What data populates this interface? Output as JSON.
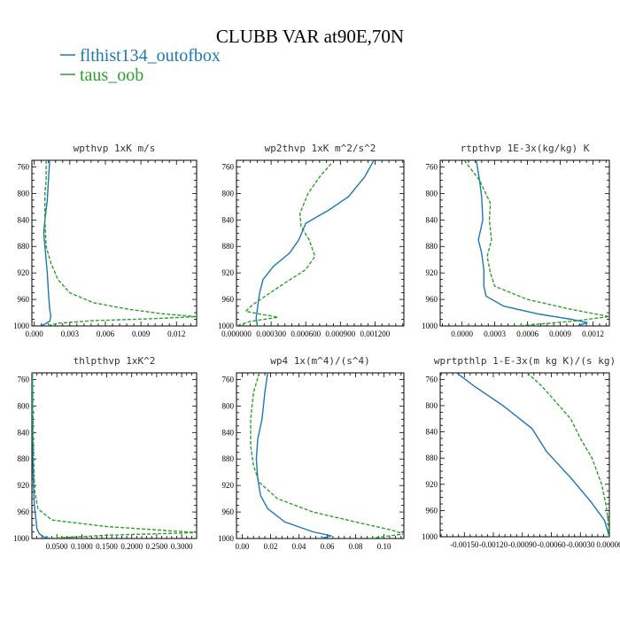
{
  "figure": {
    "title": "CLUBB VAR at90E,70N",
    "legend": [
      {
        "label": "flthist134_outofbox",
        "color": "#1f77b4",
        "dash": "solid"
      },
      {
        "label": "taus_oob",
        "color": "#2ca02c",
        "dash": "dashed"
      }
    ]
  },
  "chart_data": [
    {
      "type": "line",
      "title": "wpthvp  1xK m/s",
      "xlim": [
        -0.0002,
        0.0137
      ],
      "ylim": [
        1000,
        750
      ],
      "xticks": [
        0.0,
        0.003,
        0.006,
        0.009,
        0.012
      ],
      "xtick_labels": [
        "0.000",
        "0.003",
        "0.006",
        "0.009",
        "0.012"
      ],
      "yticks": [
        760,
        800,
        840,
        880,
        920,
        960,
        1000
      ],
      "series": [
        {
          "name": "flthist134_outofbox",
          "points": [
            [
              0.0013,
              750
            ],
            [
              0.0012,
              780
            ],
            [
              0.0011,
              810
            ],
            [
              0.0009,
              840
            ],
            [
              0.0008,
              860
            ],
            [
              0.0009,
              880
            ],
            [
              0.0011,
              920
            ],
            [
              0.0012,
              950
            ],
            [
              0.0013,
              975
            ],
            [
              0.0014,
              985
            ],
            [
              0.0013,
              993
            ],
            [
              0.0008,
              998
            ],
            [
              0.0004,
              1000
            ]
          ]
        },
        {
          "name": "taus_oob",
          "points": [
            [
              0.001,
              750
            ],
            [
              0.001,
              780
            ],
            [
              0.0009,
              800
            ],
            [
              0.0009,
              840
            ],
            [
              0.001,
              880
            ],
            [
              0.0014,
              905
            ],
            [
              0.002,
              930
            ],
            [
              0.003,
              950
            ],
            [
              0.005,
              965
            ],
            [
              0.008,
              975
            ],
            [
              0.011,
              982
            ],
            [
              0.0137,
              986
            ],
            [
              0.01,
              989
            ],
            [
              0.005,
              992
            ],
            [
              0.002,
              996
            ],
            [
              0.001,
              1000
            ]
          ]
        }
      ]
    },
    {
      "type": "line",
      "title": "wp2thvp  1xK m^2/s^2",
      "xlim": [
        0.0,
        0.00145
      ],
      "ylim": [
        1000,
        750
      ],
      "xticks": [
        0.0,
        0.0003,
        0.0006,
        0.0009,
        0.0012
      ],
      "xtick_labels": [
        "0.000000",
        "0.000300",
        "0.000600",
        "0.000900",
        "0.001200"
      ],
      "yticks": [
        760,
        800,
        840,
        880,
        920,
        960,
        1000
      ],
      "series": [
        {
          "name": "flthist134_outofbox",
          "points": [
            [
              0.00119,
              750
            ],
            [
              0.00111,
              775
            ],
            [
              0.00097,
              805
            ],
            [
              0.0008,
              825
            ],
            [
              0.0006,
              845
            ],
            [
              0.00054,
              870
            ],
            [
              0.00046,
              890
            ],
            [
              0.00032,
              910
            ],
            [
              0.00023,
              930
            ],
            [
              0.0002,
              950
            ],
            [
              0.00018,
              975
            ],
            [
              0.00017,
              988
            ],
            [
              0.00018,
              1000
            ]
          ]
        },
        {
          "name": "taus_oob",
          "points": [
            [
              0.00082,
              755
            ],
            [
              0.00072,
              775
            ],
            [
              0.00062,
              800
            ],
            [
              0.00055,
              830
            ],
            [
              0.00056,
              850
            ],
            [
              0.00063,
              870
            ],
            [
              0.00068,
              895
            ],
            [
              0.0006,
              915
            ],
            [
              0.00042,
              935
            ],
            [
              0.00025,
              955
            ],
            [
              0.00014,
              968
            ],
            [
              8e-05,
              978
            ],
            [
              0.00036,
              987
            ],
            [
              0.00012,
              993
            ],
            [
              0.0,
              1000
            ]
          ]
        }
      ]
    },
    {
      "type": "line",
      "title": "rtpthvp  1E-3x(kg/kg) K",
      "xlim": [
        -0.0002,
        0.00135
      ],
      "ylim": [
        1000,
        750
      ],
      "xticks": [
        0.0,
        0.0003,
        0.0006,
        0.0009,
        0.0012
      ],
      "xtick_labels": [
        "0.0000",
        "0.0003",
        "0.0006",
        "0.0009",
        "0.0012"
      ],
      "yticks": [
        760,
        800,
        840,
        880,
        920,
        960,
        1000
      ],
      "series": [
        {
          "name": "flthist134_outofbox",
          "points": [
            [
              0.00013,
              750
            ],
            [
              0.00016,
              780
            ],
            [
              0.00018,
              805
            ],
            [
              0.00019,
              840
            ],
            [
              0.00015,
              870
            ],
            [
              0.00018,
              890
            ],
            [
              0.0002,
              915
            ],
            [
              0.0002,
              940
            ],
            [
              0.00022,
              955
            ],
            [
              0.00038,
              970
            ],
            [
              0.0007,
              982
            ],
            [
              0.001,
              990
            ],
            [
              0.00115,
              995
            ],
            [
              0.00105,
              1000
            ]
          ]
        },
        {
          "name": "taus_oob",
          "points": [
            [
              2e-05,
              750
            ],
            [
              0.00016,
              780
            ],
            [
              0.00026,
              815
            ],
            [
              0.00025,
              840
            ],
            [
              0.00027,
              870
            ],
            [
              0.00023,
              895
            ],
            [
              0.00026,
              920
            ],
            [
              0.0003,
              940
            ],
            [
              0.0006,
              960
            ],
            [
              0.001,
              975
            ],
            [
              0.00135,
              986
            ],
            [
              0.001,
              993
            ],
            [
              0.0005,
              1000
            ]
          ]
        }
      ]
    },
    {
      "type": "line",
      "title": "thlpthvp  1xK^2",
      "xlim": [
        0.0,
        0.33
      ],
      "ylim": [
        1000,
        750
      ],
      "xticks": [
        0.05,
        0.1,
        0.15,
        0.2,
        0.25,
        0.3
      ],
      "xtick_labels": [
        "0.0500",
        "0.1000",
        "0.1500",
        "0.2000",
        "0.2500",
        "0.3000"
      ],
      "yticks": [
        760,
        800,
        840,
        880,
        920,
        960,
        1000
      ],
      "series": [
        {
          "name": "flthist134_outofbox",
          "points": [
            [
              0.001,
              750
            ],
            [
              0.001,
              800
            ],
            [
              0.002,
              880
            ],
            [
              0.003,
              920
            ],
            [
              0.005,
              950
            ],
            [
              0.008,
              970
            ],
            [
              0.01,
              985
            ],
            [
              0.015,
              993
            ],
            [
              0.025,
              998
            ],
            [
              0.04,
              1000
            ]
          ]
        },
        {
          "name": "taus_oob",
          "points": [
            [
              0.001,
              750
            ],
            [
              0.002,
              800
            ],
            [
              0.003,
              860
            ],
            [
              0.004,
              900
            ],
            [
              0.006,
              930
            ],
            [
              0.012,
              955
            ],
            [
              0.04,
              972
            ],
            [
              0.15,
              982
            ],
            [
              0.33,
              991
            ],
            [
              0.15,
              995
            ],
            [
              0.03,
              1000
            ]
          ]
        }
      ]
    },
    {
      "type": "line",
      "title": "wp4  1x(m^4)/(s^4)",
      "xlim": [
        -0.004,
        0.114
      ],
      "ylim": [
        1000,
        750
      ],
      "xticks": [
        0.0,
        0.02,
        0.04,
        0.06,
        0.08,
        0.1
      ],
      "xtick_labels": [
        "0.00",
        "0.02",
        "0.04",
        "0.06",
        "0.08",
        "0.10"
      ],
      "yticks": [
        760,
        800,
        840,
        880,
        920,
        960,
        1000
      ],
      "series": [
        {
          "name": "flthist134_outofbox",
          "points": [
            [
              0.018,
              750
            ],
            [
              0.016,
              780
            ],
            [
              0.014,
              820
            ],
            [
              0.011,
              850
            ],
            [
              0.01,
              880
            ],
            [
              0.011,
              910
            ],
            [
              0.013,
              935
            ],
            [
              0.018,
              955
            ],
            [
              0.03,
              975
            ],
            [
              0.05,
              990
            ],
            [
              0.063,
              996
            ],
            [
              0.055,
              1000
            ]
          ]
        },
        {
          "name": "taus_oob",
          "points": [
            [
              0.012,
              750
            ],
            [
              0.008,
              780
            ],
            [
              0.006,
              820
            ],
            [
              0.006,
              860
            ],
            [
              0.008,
              890
            ],
            [
              0.012,
              915
            ],
            [
              0.025,
              940
            ],
            [
              0.05,
              960
            ],
            [
              0.08,
              975
            ],
            [
              0.105,
              987
            ],
            [
              0.114,
              993
            ],
            [
              0.09,
              1000
            ]
          ]
        }
      ]
    },
    {
      "type": "line",
      "title": "wprtpthlp  1-E-3x(m kg K)/(s kg)",
      "xlim": [
        -0.00175,
        0.0
      ],
      "ylim": [
        1000,
        750
      ],
      "xticks": [
        -0.0015,
        -0.0012,
        -0.0009,
        -0.0006,
        -0.0003,
        0.0
      ],
      "xtick_labels": [
        "-0.00150",
        "-0.00120",
        "-0.00090",
        "-0.00060",
        "-0.00030",
        "0.00000"
      ],
      "yticks": [
        760,
        800,
        840,
        880,
        920,
        960,
        1000
      ],
      "series": [
        {
          "name": "flthist134_outofbox",
          "points": [
            [
              -0.00158,
              750
            ],
            [
              -0.0014,
              770
            ],
            [
              -0.0011,
              800
            ],
            [
              -0.0008,
              835
            ],
            [
              -0.00065,
              870
            ],
            [
              -0.0004,
              910
            ],
            [
              -0.0002,
              945
            ],
            [
              -5e-05,
              975
            ],
            [
              0.0,
              1000
            ]
          ]
        },
        {
          "name": "taus_oob",
          "points": [
            [
              -0.00085,
              750
            ],
            [
              -0.0007,
              770
            ],
            [
              -0.00055,
              795
            ],
            [
              -0.0004,
              820
            ],
            [
              -0.0003,
              850
            ],
            [
              -0.00018,
              880
            ],
            [
              -8e-05,
              920
            ],
            [
              -3e-05,
              955
            ],
            [
              -1e-05,
              980
            ],
            [
              0.0,
              1000
            ]
          ]
        }
      ]
    }
  ]
}
